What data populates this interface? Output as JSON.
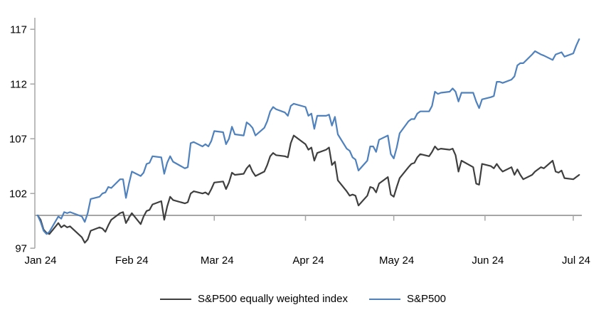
{
  "chart_data": {
    "type": "line",
    "title": "",
    "xlabel": "",
    "ylabel": "",
    "grid": false,
    "legend_position": "bottom",
    "y_axis": {
      "ticks": [
        117,
        112,
        107,
        102,
        97
      ],
      "min": 97,
      "max": 117,
      "baseline_value": 100
    },
    "x_axis": {
      "tick_labels": [
        "Jan 24",
        "Feb 24",
        "Mar 24",
        "Apr 24",
        "May 24",
        "Jun 24",
        "Jul 24"
      ],
      "tick_day_of_year": [
        0,
        31,
        60,
        91,
        121,
        152,
        182
      ],
      "minor_tick_day_of_year": [
        31,
        60,
        91,
        121,
        152,
        182
      ],
      "total_days": 184
    },
    "x_day_of_year": [
      0,
      1,
      2,
      3,
      4,
      7,
      8,
      9,
      10,
      11,
      15,
      16,
      17,
      18,
      21,
      22,
      23,
      24,
      25,
      28,
      29,
      30,
      31,
      32,
      35,
      36,
      37,
      38,
      39,
      42,
      43,
      44,
      45,
      46,
      50,
      51,
      52,
      53,
      56,
      57,
      58,
      59,
      60,
      63,
      64,
      65,
      66,
      67,
      70,
      71,
      72,
      73,
      74,
      77,
      78,
      79,
      80,
      81,
      84,
      85,
      86,
      87,
      91,
      92,
      93,
      94,
      95,
      98,
      99,
      100,
      101,
      102,
      105,
      106,
      107,
      108,
      109,
      112,
      113,
      114,
      115,
      116,
      119,
      120,
      121,
      122,
      123,
      126,
      127,
      128,
      129,
      130,
      133,
      134,
      135,
      136,
      137,
      140,
      141,
      142,
      143,
      144,
      148,
      149,
      150,
      151,
      154,
      155,
      156,
      157,
      158,
      161,
      162,
      163,
      164,
      165,
      168,
      169,
      171,
      172,
      175,
      176,
      177,
      178,
      179,
      182,
      183,
      184
    ],
    "series": [
      {
        "name": "S&P500 equally weighted index",
        "color": "#3f3f3f",
        "values": [
          100,
          99.6,
          98.7,
          98.4,
          98.3,
          99.3,
          98.9,
          99.1,
          98.9,
          99,
          98,
          97.5,
          97.8,
          98.6,
          98.9,
          98.8,
          98.5,
          99.1,
          99.6,
          100.2,
          100.3,
          99.3,
          99.8,
          100.2,
          99.2,
          99.9,
          100.4,
          100.5,
          101,
          101.3,
          99.6,
          100.8,
          101.7,
          101.4,
          101.1,
          101.2,
          102,
          102.2,
          102,
          102.1,
          101.9,
          102.4,
          103,
          103.1,
          102.4,
          103,
          103.9,
          103.7,
          103.8,
          104.3,
          104.6,
          104,
          103.6,
          104,
          104.6,
          105.4,
          105.7,
          105.5,
          105.4,
          105.3,
          106.6,
          107.3,
          106.5,
          106,
          106.2,
          105,
          105.7,
          106,
          106.2,
          104.6,
          104.9,
          103.2,
          102.2,
          101.8,
          101.9,
          101.8,
          100.9,
          101.8,
          102.6,
          102.5,
          102.1,
          102.9,
          103.5,
          101.9,
          101.7,
          102.6,
          103.4,
          104.4,
          104.7,
          104.8,
          105.3,
          105.6,
          105.4,
          105.8,
          106.3,
          106,
          106.1,
          106,
          106.1,
          105.5,
          104,
          105,
          104.4,
          102.9,
          102.8,
          104.7,
          104.5,
          104.3,
          104.7,
          104.3,
          104,
          104.4,
          103.7,
          104.2,
          103.7,
          103.3,
          103.7,
          104,
          104.4,
          104.3,
          105,
          104,
          103.9,
          104.1,
          103.4,
          103.3,
          103.5,
          103.7
        ]
      },
      {
        "name": "S&P500",
        "color": "#4f81bd",
        "values": [
          100,
          99.4,
          98.6,
          98.3,
          98.5,
          99.9,
          99.7,
          100.3,
          100.2,
          100.3,
          99.9,
          99.4,
          100.2,
          101.5,
          101.7,
          102,
          102.1,
          102.6,
          102.5,
          103.3,
          103.3,
          101.6,
          102.9,
          104,
          103.6,
          103.9,
          104.7,
          104.8,
          105.4,
          105.3,
          103.8,
          104.8,
          105.4,
          104.9,
          104.3,
          104.4,
          106.6,
          106.7,
          106.3,
          106.5,
          106.3,
          106.8,
          107.7,
          107.6,
          106.5,
          107,
          108.1,
          107.4,
          107.3,
          108.5,
          108.3,
          108,
          107.3,
          108,
          108.6,
          109.5,
          109.9,
          109.7,
          109.4,
          109.1,
          110,
          110.2,
          109.9,
          109.1,
          109.3,
          107.9,
          109.1,
          109.1,
          109.2,
          108.2,
          109,
          107.4,
          106.1,
          105.9,
          105.3,
          105.1,
          104.1,
          105,
          106.3,
          106.3,
          105.8,
          106.9,
          107.3,
          105.6,
          105.2,
          106.2,
          107.5,
          108.6,
          108.8,
          108.8,
          109.3,
          109.5,
          109.5,
          110,
          111.3,
          111.1,
          111.2,
          111.3,
          111.6,
          111.3,
          110.4,
          111.2,
          111.2,
          110.4,
          109.8,
          110.6,
          110.8,
          110.9,
          112.2,
          112.2,
          112.1,
          112.4,
          112.7,
          113.7,
          113.9,
          113.9,
          114.7,
          115,
          114.7,
          114.6,
          114.2,
          114.7,
          114.8,
          114.9,
          114.5,
          114.8,
          115.5,
          116.1
        ]
      }
    ],
    "colors": {
      "axis": "#a6a6a6",
      "baseline": "#a6a6a6",
      "text": "#000000"
    }
  },
  "legend": {
    "items": [
      {
        "label": "S&P500 equally weighted index"
      },
      {
        "label": "S&P500"
      }
    ]
  }
}
